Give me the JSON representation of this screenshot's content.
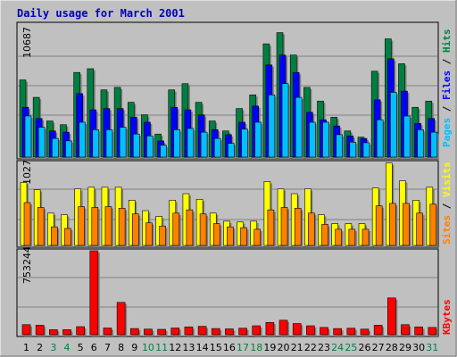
{
  "chart_data": [
    {
      "type": "bar",
      "title": "Daily usage for March 2001",
      "categories": [
        "1",
        "2",
        "3",
        "4",
        "5",
        "6",
        "7",
        "8",
        "9",
        "10",
        "11",
        "12",
        "13",
        "14",
        "15",
        "16",
        "17",
        "18",
        "19",
        "20",
        "21",
        "22",
        "23",
        "24",
        "25",
        "26",
        "27",
        "28",
        "29",
        "30",
        "31"
      ],
      "weekend_categories": [
        "3",
        "4",
        "10",
        "11",
        "17",
        "18",
        "24",
        "25",
        "31"
      ],
      "ylabel": "Pages / Files / Hits",
      "ymax_label": "10687",
      "ylim": [
        0,
        10687
      ],
      "series": [
        {
          "name": "Hits",
          "color": "#008040",
          "values": [
            6200,
            4800,
            2900,
            2600,
            6800,
            7100,
            5400,
            5600,
            4400,
            3400,
            1850,
            5400,
            5900,
            4400,
            2900,
            2100,
            3900,
            5000,
            9100,
            10000,
            8200,
            5600,
            4500,
            3200,
            2100,
            1600,
            6900,
            9500,
            7500,
            4000,
            4500
          ]
        },
        {
          "name": "Files",
          "color": "#0000ff",
          "values": [
            4000,
            3100,
            2100,
            2000,
            5100,
            3800,
            3900,
            3900,
            3200,
            2800,
            1300,
            4000,
            3800,
            3400,
            2200,
            1800,
            2800,
            4100,
            7400,
            8200,
            6800,
            3600,
            3000,
            2500,
            1700,
            1500,
            4600,
            7900,
            5300,
            2700,
            3100
          ]
        },
        {
          "name": "Pages",
          "color": "#00c0ff",
          "values": [
            3300,
            2400,
            1500,
            1300,
            2800,
            2200,
            2200,
            2400,
            1850,
            1700,
            950,
            2200,
            2300,
            2000,
            1500,
            1100,
            2250,
            2800,
            5000,
            5900,
            4800,
            2800,
            2800,
            1800,
            1200,
            1150,
            3000,
            5200,
            3300,
            2200,
            2000
          ]
        }
      ]
    },
    {
      "type": "bar",
      "ylabel": "Sites / Visits",
      "ymax_label": "1027",
      "ylim": [
        0,
        1027
      ],
      "series": [
        {
          "name": "Visits",
          "color": "#ffff00",
          "values": [
            780,
            690,
            400,
            380,
            700,
            720,
            720,
            720,
            560,
            430,
            360,
            560,
            640,
            570,
            400,
            300,
            290,
            300,
            790,
            700,
            640,
            700,
            380,
            270,
            270,
            270,
            710,
            1020,
            800,
            560,
            720
          ]
        },
        {
          "name": "Sites",
          "color": "#ff8000",
          "values": [
            530,
            470,
            230,
            210,
            480,
            470,
            480,
            460,
            390,
            280,
            240,
            400,
            440,
            390,
            270,
            230,
            220,
            200,
            440,
            470,
            460,
            400,
            260,
            200,
            200,
            200,
            490,
            520,
            520,
            400,
            510
          ]
        }
      ]
    },
    {
      "type": "bar",
      "ylabel": "KBytes",
      "ymax_label": "753244",
      "ylim": [
        0,
        753244
      ],
      "series": [
        {
          "name": "KBytes",
          "color": "#ff0000",
          "values": [
            90000,
            85000,
            45000,
            45000,
            72000,
            753244,
            60000,
            290000,
            55000,
            50000,
            48000,
            60000,
            70000,
            75000,
            55000,
            52000,
            58000,
            80000,
            110000,
            130000,
            100000,
            80000,
            65000,
            55000,
            58000,
            50000,
            85000,
            330000,
            90000,
            70000,
            65000
          ]
        }
      ]
    }
  ]
}
